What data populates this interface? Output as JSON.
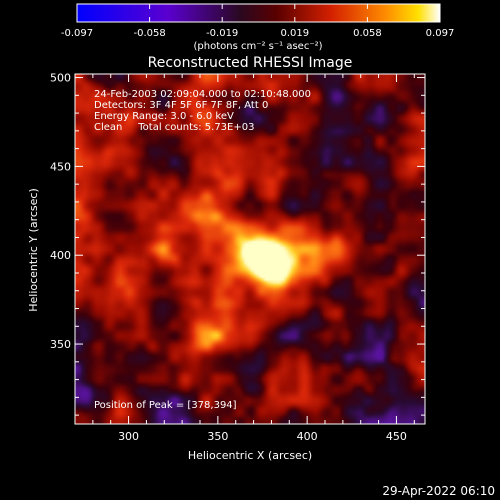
{
  "colorbar": {
    "tick_labels": [
      "-0.097",
      "-0.058",
      "-0.019",
      "0.019",
      "0.058",
      "0.097"
    ],
    "range": [
      -0.097,
      0.097
    ],
    "units": "(photons cm⁻² s⁻¹ asec⁻²)",
    "colors": [
      "#0000ff",
      "#5a00d0",
      "#6a2a8a",
      "#3a0a18",
      "#8b0000",
      "#d42000",
      "#ff7a00",
      "#ffd000",
      "#ffffff"
    ]
  },
  "chart_data": {
    "type": "heatmap",
    "title": "Reconstructed RHESSI Image",
    "xlabel": "Heliocentric X (arcsec)",
    "ylabel": "Heliocentric Y (arcsec)",
    "xlim": [
      270,
      466
    ],
    "ylim": [
      305,
      502
    ],
    "xticks": [
      "300",
      "350",
      "400",
      "450"
    ],
    "xtick_values": [
      300,
      350,
      400,
      450
    ],
    "yticks": [
      "350",
      "400",
      "450",
      "500"
    ],
    "ytick_values": [
      350,
      400,
      450,
      500
    ],
    "peak": [
      378,
      394
    ],
    "annotations": [
      "24-Feb-2003 02:09:04.000 to 02:10:48.000",
      "Detectors: 3F 4F 5F 6F 7F 8F, Att 0",
      "Energy Range: 3.0 - 6.0 keV",
      "Clean     Total counts: 5.73E+03"
    ],
    "peak_label": "Position of Peak = [378,394]"
  },
  "footer": {
    "timestamp": "29-Apr-2022 06:10"
  }
}
